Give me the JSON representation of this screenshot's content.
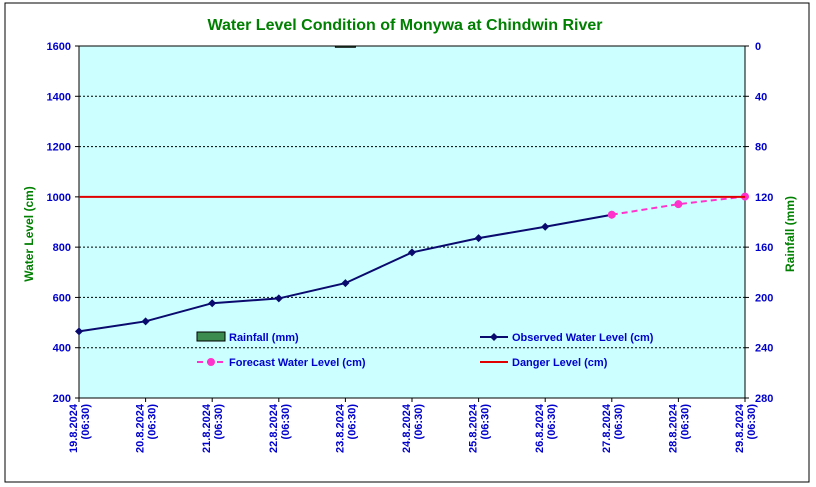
{
  "chart_data": {
    "type": "line",
    "title": "Water Level Condition of Monywa at Chindwin River",
    "ylabel": "Water Level (cm)",
    "y2label": "Rainfall (mm)",
    "ylim": [
      200,
      1600
    ],
    "y2lim": [
      0,
      280
    ],
    "y2_inverted": true,
    "yticks": [
      "200",
      "400",
      "600",
      "800",
      "1000",
      "1200",
      "1400",
      "1600"
    ],
    "y2ticks": [
      "0",
      "40",
      "80",
      "120",
      "160",
      "200",
      "240",
      "280"
    ],
    "grid": true,
    "categories": [
      [
        "19.8.2024",
        "(06:30)"
      ],
      [
        "20.8.2024",
        "(06:30)"
      ],
      [
        "21.8.2024",
        "(06:30)"
      ],
      [
        "22.8.2024",
        "(06:30)"
      ],
      [
        "23.8.2024",
        "(06:30)"
      ],
      [
        "24.8.2024",
        "(06:30)"
      ],
      [
        "25.8.2024",
        "(06:30)"
      ],
      [
        "26.8.2024",
        "(06:30)"
      ],
      [
        "27.8.2024",
        "(06:30)"
      ],
      [
        "28.8.2024",
        "(06:30)"
      ],
      [
        "29.8.2024",
        "(06:30)"
      ]
    ],
    "series": [
      {
        "name": "Rainfall (mm)",
        "kind": "bar",
        "axis": "right",
        "color": "#3c8c50",
        "values": [
          0,
          0,
          0,
          0,
          1,
          0,
          0,
          0,
          0,
          0,
          0
        ]
      },
      {
        "name": "Observed Water Level (cm)",
        "kind": "line",
        "axis": "left",
        "color": "#0a0a6e",
        "marker": "diamond",
        "values": [
          465,
          505,
          577,
          596,
          657,
          779,
          836,
          881,
          929,
          null,
          null
        ]
      },
      {
        "name": "Forecast Water Level (cm)",
        "kind": "line",
        "axis": "left",
        "color": "#ff33cc",
        "dash": true,
        "marker": "circle",
        "values": [
          null,
          null,
          null,
          null,
          null,
          null,
          null,
          null,
          929,
          971,
          1001
        ]
      },
      {
        "name": "Danger Level (cm)",
        "kind": "hline",
        "axis": "left",
        "color": "#e00000",
        "value": 1000
      }
    ],
    "legend": "bottom-inside"
  },
  "colors": {
    "plot_background": "#ccffff",
    "title": "#008000",
    "axis_text": "#0000cc",
    "axis_title": "#008000"
  }
}
